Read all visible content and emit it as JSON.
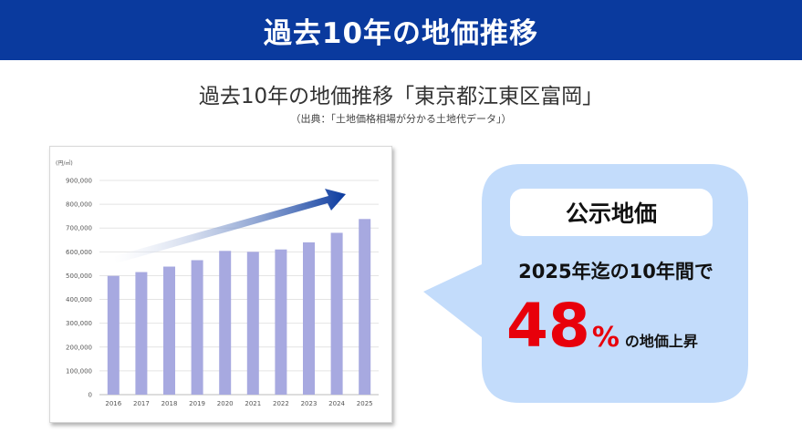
{
  "banner": {
    "title": "過去10年の地価推移"
  },
  "heading": {
    "subtitle": "過去10年の地価推移「東京都江東区富岡」",
    "source": "（出典：「土地価格相場が分かる土地代データ」）"
  },
  "callout": {
    "label": "公示地価",
    "period_text": "2025年迄の10年間で",
    "rise_value": "48",
    "rise_unit": "%",
    "rise_suffix": "の地価上昇"
  },
  "colors": {
    "banner": "#0a3a9e",
    "bar": "#a7a9e0",
    "bubble": "#c3dcfb",
    "highlight": "#e8000b"
  },
  "chart_data": {
    "type": "bar",
    "unit_label": "(円/㎡)",
    "categories": [
      "2016",
      "2017",
      "2018",
      "2019",
      "2020",
      "2021",
      "2022",
      "2023",
      "2024",
      "2025"
    ],
    "values": [
      499000,
      515000,
      538000,
      565000,
      604000,
      600000,
      610000,
      640000,
      680000,
      738000
    ],
    "ylim": [
      0,
      900000
    ],
    "yticks": [
      0,
      100000,
      200000,
      300000,
      400000,
      500000,
      600000,
      700000,
      800000,
      900000
    ],
    "ytick_labels": [
      "0",
      "100,000",
      "200,000",
      "300,000",
      "400,000",
      "500,000",
      "600,000",
      "700,000",
      "800,000",
      "900,000"
    ],
    "grid": true,
    "trend_arrow": "up-right"
  }
}
